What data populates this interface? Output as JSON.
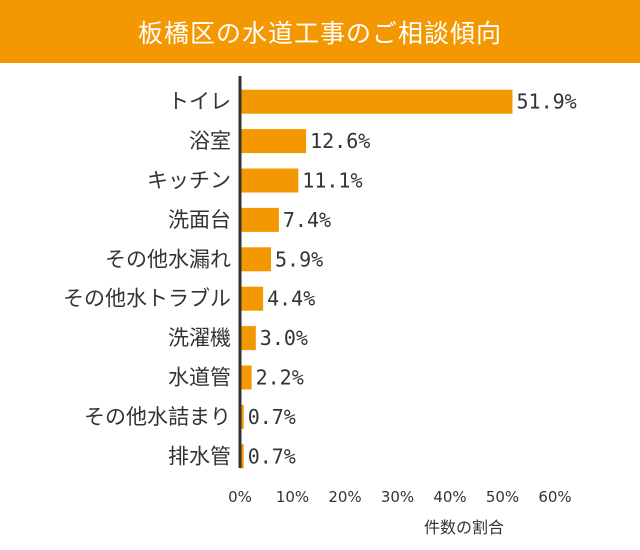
{
  "colors": {
    "accent": "#f39800",
    "bar": "#f39800",
    "axis": "#333333",
    "text": "#333333"
  },
  "chart_data": {
    "type": "bar",
    "orientation": "horizontal",
    "title": "板橋区の水道工事のご相談傾向",
    "xlabel": "件数の割合",
    "ylabel": "",
    "xlim": [
      0,
      60
    ],
    "x_ticks": [
      0,
      10,
      20,
      30,
      40,
      50,
      60
    ],
    "x_tick_labels": [
      "0%",
      "10%",
      "20%",
      "30%",
      "40%",
      "50%",
      "60%"
    ],
    "grid": false,
    "legend": "none",
    "categories": [
      "トイレ",
      "浴室",
      "キッチン",
      "洗面台",
      "その他水漏れ",
      "その他水トラブル",
      "洗濯機",
      "水道管",
      "その他水詰まり",
      "排水管"
    ],
    "values": [
      51.9,
      12.6,
      11.1,
      7.4,
      5.9,
      4.4,
      3.0,
      2.2,
      0.7,
      0.7
    ],
    "value_labels": [
      "51.9%",
      "12.6%",
      "11.1%",
      "7.4%",
      "5.9%",
      "4.4%",
      "3.0%",
      "2.2%",
      "0.7%",
      "0.7%"
    ]
  }
}
